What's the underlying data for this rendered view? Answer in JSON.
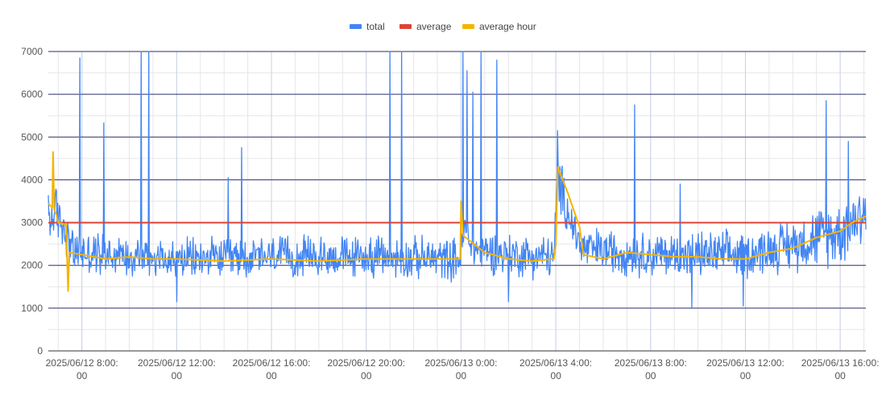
{
  "chart_data": {
    "type": "line",
    "legend": {
      "position": "top"
    },
    "grid": true,
    "y_axis": {
      "ylim": [
        0,
        7000
      ],
      "ticks": [
        0,
        1000,
        2000,
        3000,
        4000,
        5000,
        6000,
        7000
      ],
      "tick_labels": [
        "0",
        "1000",
        "2000",
        "3000",
        "4000",
        "5000",
        "6000",
        "7000"
      ]
    },
    "x_axis": {
      "xlim": [
        "2025-06-12 06:35",
        "2025-06-13 17:05"
      ],
      "ticks": [
        "2025-06-12 08:00",
        "2025-06-12 12:00",
        "2025-06-12 16:00",
        "2025-06-12 20:00",
        "2025-06-13 00:00",
        "2025-06-13 04:00",
        "2025-06-13 08:00",
        "2025-06-13 12:00",
        "2025-06-13 16:00"
      ],
      "tick_labels": [
        [
          "2025/06/12 8:00:",
          "00"
        ],
        [
          "2025/06/12 12:00:",
          "00"
        ],
        [
          "2025/06/12 16:00:",
          "00"
        ],
        [
          "2025/06/12 20:00:",
          "00"
        ],
        [
          "2025/06/13 0:00:",
          "00"
        ],
        [
          "2025/06/13 4:00:",
          "00"
        ],
        [
          "2025/06/13 8:00:",
          "00"
        ],
        [
          "2025/06/13 12:00:",
          "00"
        ],
        [
          "2025/06/13 16:00:",
          "00"
        ]
      ]
    },
    "series": [
      {
        "name": "total",
        "color": "#4285f4",
        "style": "noisy",
        "base": [
          [
            "2025-06-12 06:35",
            3100
          ],
          [
            "2025-06-12 07:00",
            3200
          ],
          [
            "2025-06-12 07:15",
            2900
          ],
          [
            "2025-06-12 07:40",
            2300
          ],
          [
            "2025-06-12 10:00",
            2250
          ],
          [
            "2025-06-12 12:00",
            2150
          ],
          [
            "2025-06-12 16:00",
            2200
          ],
          [
            "2025-06-12 20:00",
            2200
          ],
          [
            "2025-06-12 23:58",
            2150
          ],
          [
            "2025-06-13 00:10",
            2900
          ],
          [
            "2025-06-13 00:30",
            2400
          ],
          [
            "2025-06-13 02:00",
            2250
          ],
          [
            "2025-06-13 03:55",
            2200
          ],
          [
            "2025-06-13 04:05",
            4000
          ],
          [
            "2025-06-13 04:40",
            3000
          ],
          [
            "2025-06-13 05:05",
            2400
          ],
          [
            "2025-06-13 08:00",
            2250
          ],
          [
            "2025-06-13 12:00",
            2250
          ],
          [
            "2025-06-13 14:00",
            2500
          ],
          [
            "2025-06-13 16:00",
            2800
          ],
          [
            "2025-06-13 17:05",
            3300
          ]
        ],
        "spread": [
          [
            "2025-06-12 06:35",
            900
          ],
          [
            "2025-06-12 07:40",
            600
          ],
          [
            "2025-06-12 12:00",
            550
          ],
          [
            "2025-06-13 04:00",
            600
          ],
          [
            "2025-06-13 04:05",
            800
          ],
          [
            "2025-06-13 05:00",
            600
          ],
          [
            "2025-06-13 13:00",
            650
          ],
          [
            "2025-06-13 17:05",
            1000
          ]
        ],
        "spikes": [
          [
            "2025-06-12 07:55",
            6850
          ],
          [
            "2025-06-12 08:55",
            5330
          ],
          [
            "2025-06-12 10:30",
            7000
          ],
          [
            "2025-06-12 10:50",
            7000
          ],
          [
            "2025-06-12 14:45",
            4750
          ],
          [
            "2025-06-12 14:10",
            4050
          ],
          [
            "2025-06-12 21:00",
            7000
          ],
          [
            "2025-06-12 21:30",
            7000
          ],
          [
            "2025-06-13 00:05",
            7000
          ],
          [
            "2025-06-13 00:15",
            6550
          ],
          [
            "2025-06-13 00:30",
            6050
          ],
          [
            "2025-06-13 00:50",
            7000
          ],
          [
            "2025-06-13 01:30",
            6800
          ],
          [
            "2025-06-13 04:05",
            5150
          ],
          [
            "2025-06-13 07:20",
            5750
          ],
          [
            "2025-06-13 09:15",
            3900
          ],
          [
            "2025-06-13 15:25",
            5850
          ],
          [
            "2025-06-13 16:20",
            4900
          ]
        ],
        "dips": [
          [
            "2025-06-13 09:45",
            1020
          ],
          [
            "2025-06-13 11:55",
            1050
          ],
          [
            "2025-06-12 12:00",
            1150
          ],
          [
            "2025-06-13 02:00",
            1150
          ]
        ]
      },
      {
        "name": "average",
        "color": "#db4437",
        "style": "flat",
        "y": 3000
      },
      {
        "name": "average hour",
        "color": "#f4b400",
        "style": "sawtooth",
        "points": [
          [
            "2025-06-12 06:35",
            3450
          ],
          [
            "2025-06-12 06:45",
            3350
          ],
          [
            "2025-06-12 06:47",
            4650
          ],
          [
            "2025-06-12 06:50",
            3300
          ],
          [
            "2025-06-12 06:55",
            3200
          ],
          [
            "2025-06-12 07:00",
            3000
          ],
          [
            "2025-06-12 07:20",
            2950
          ],
          [
            "2025-06-12 07:25",
            1400
          ],
          [
            "2025-06-12 07:28",
            2300
          ],
          [
            "2025-06-12 08:00",
            2250
          ],
          [
            "2025-06-12 09:00",
            2150
          ],
          [
            "2025-06-12 10:00",
            2200
          ],
          [
            "2025-06-12 11:00",
            2150
          ],
          [
            "2025-06-12 12:00",
            2150
          ],
          [
            "2025-06-12 14:00",
            2100
          ],
          [
            "2025-06-12 16:00",
            2150
          ],
          [
            "2025-06-12 18:00",
            2100
          ],
          [
            "2025-06-12 20:00",
            2150
          ],
          [
            "2025-06-12 22:00",
            2150
          ],
          [
            "2025-06-12 23:58",
            2150
          ],
          [
            "2025-06-13 00:00",
            3500
          ],
          [
            "2025-06-13 00:05",
            2700
          ],
          [
            "2025-06-13 01:00",
            2300
          ],
          [
            "2025-06-13 02:00",
            2150
          ],
          [
            "2025-06-13 03:00",
            2100
          ],
          [
            "2025-06-13 03:55",
            2150
          ],
          [
            "2025-06-13 04:00",
            2500
          ],
          [
            "2025-06-13 04:05",
            4300
          ],
          [
            "2025-06-13 04:30",
            3700
          ],
          [
            "2025-06-13 05:00",
            2900
          ],
          [
            "2025-06-13 05:10",
            2250
          ],
          [
            "2025-06-13 06:00",
            2150
          ],
          [
            "2025-06-13 07:00",
            2300
          ],
          [
            "2025-06-13 08:00",
            2250
          ],
          [
            "2025-06-13 09:00",
            2200
          ],
          [
            "2025-06-13 10:00",
            2200
          ],
          [
            "2025-06-13 11:00",
            2150
          ],
          [
            "2025-06-13 12:00",
            2150
          ],
          [
            "2025-06-13 13:00",
            2300
          ],
          [
            "2025-06-13 14:00",
            2400
          ],
          [
            "2025-06-13 15:00",
            2650
          ],
          [
            "2025-06-13 16:00",
            2800
          ],
          [
            "2025-06-13 16:30",
            3000
          ],
          [
            "2025-06-13 17:05",
            3150
          ]
        ]
      }
    ]
  }
}
